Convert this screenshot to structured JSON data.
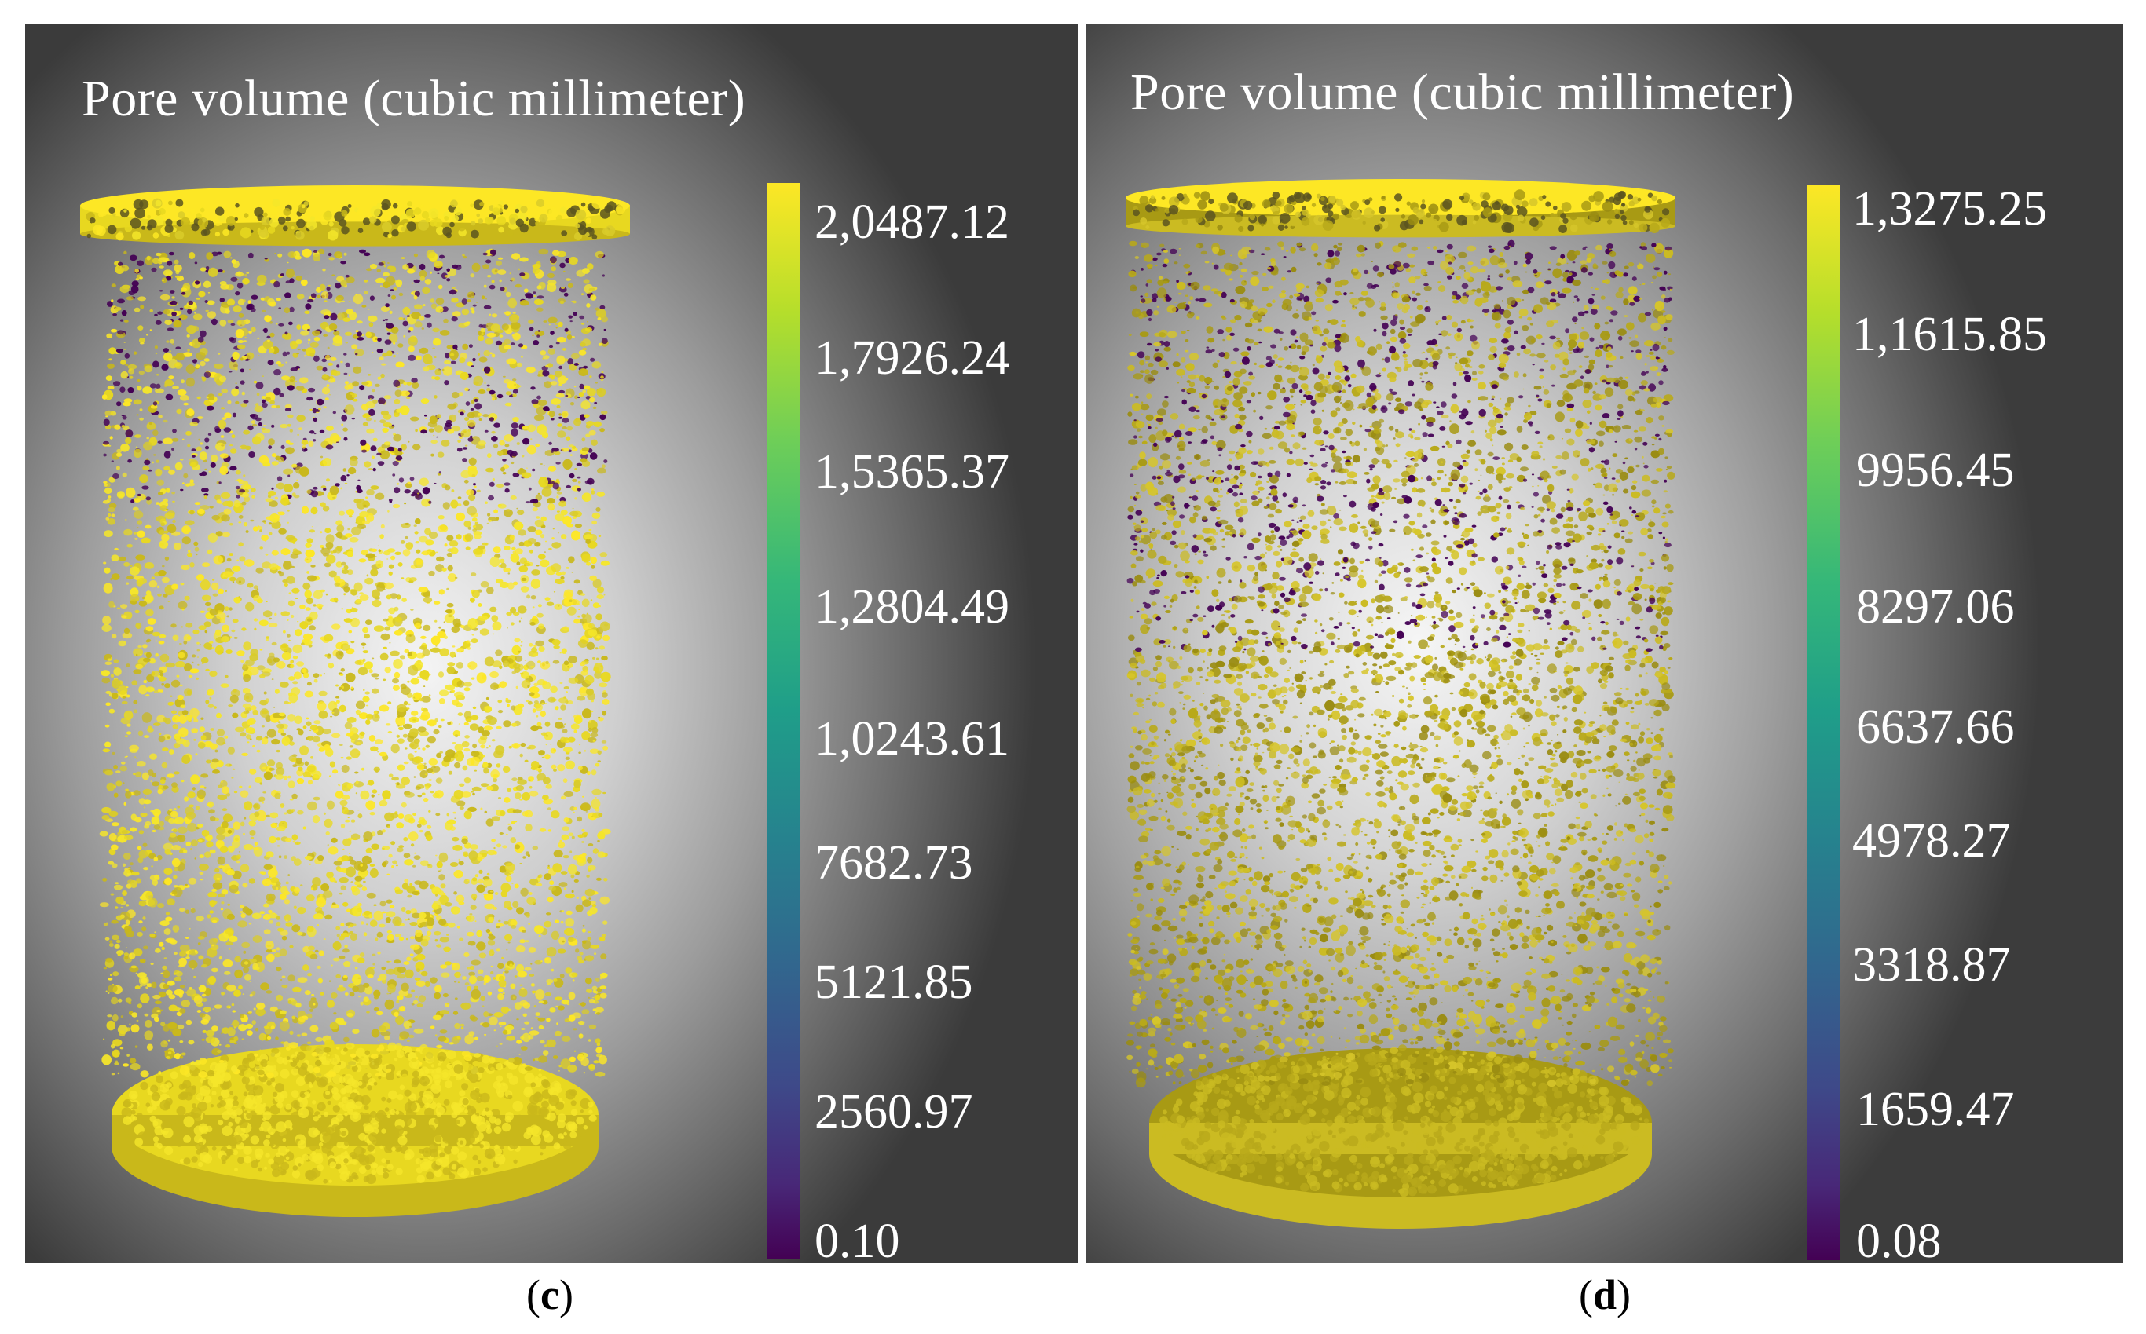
{
  "panels": [
    {
      "id": "c",
      "title": "Pore volume (cubic millimeter)",
      "colorbar_labels": [
        "2,0487.12",
        "1,7926.24",
        "1,5365.37",
        "1,2804.49",
        "1,0243.61",
        "7682.73",
        "5121.85",
        "2560.97",
        "0.10"
      ],
      "caption_letter": "c"
    },
    {
      "id": "d",
      "title": "Pore volume (cubic millimeter)",
      "colorbar_labels": [
        "1,3275.25",
        "1,1615.85",
        "9956.45",
        "8297.06",
        "6637.66",
        "4978.27",
        "3318.87",
        "1659.47",
        "0.08"
      ],
      "caption_letter": "d"
    }
  ],
  "colors": {
    "pore_high": "#fde725",
    "pore_low": "#440154",
    "background_dark": "#3b3b3b",
    "background_light": "#f4f4f4"
  }
}
